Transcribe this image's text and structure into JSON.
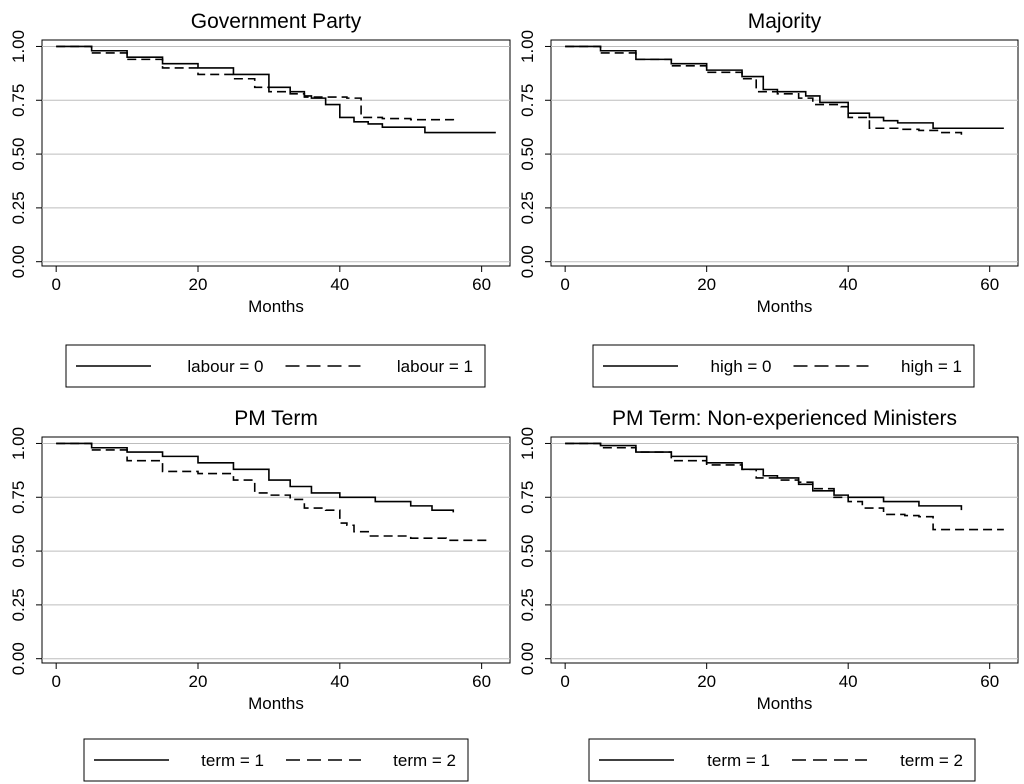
{
  "chart_data": [
    {
      "type": "line",
      "title": "Government Party",
      "xlabel": "Months",
      "ylabel": "",
      "xlim": [
        -2,
        64
      ],
      "ylim": [
        -0.02,
        1.03
      ],
      "xticks": [
        0,
        20,
        40,
        60
      ],
      "yticks": [
        0.0,
        0.25,
        0.5,
        0.75,
        1.0
      ],
      "ytick_labels": [
        "0.00",
        "0.25",
        "0.50",
        "0.75",
        "1.00"
      ],
      "grid": "horizontal",
      "legend_position": "bottom",
      "series": [
        {
          "name": "labour = 0",
          "style": "solid",
          "x": [
            0,
            5,
            10,
            15,
            20,
            25,
            30,
            33,
            35,
            36,
            38,
            40,
            42,
            44,
            46,
            52,
            62
          ],
          "y": [
            1.0,
            0.98,
            0.95,
            0.92,
            0.9,
            0.87,
            0.81,
            0.79,
            0.77,
            0.76,
            0.73,
            0.67,
            0.65,
            0.64,
            0.625,
            0.6,
            0.6
          ]
        },
        {
          "name": "labour = 1",
          "style": "dashed",
          "x": [
            0,
            5,
            10,
            15,
            20,
            25,
            28,
            30,
            33,
            35,
            38,
            41,
            43,
            46,
            50,
            56
          ],
          "y": [
            1.0,
            0.97,
            0.94,
            0.9,
            0.87,
            0.85,
            0.81,
            0.79,
            0.78,
            0.765,
            0.765,
            0.76,
            0.67,
            0.665,
            0.66,
            0.64
          ]
        }
      ]
    },
    {
      "type": "line",
      "title": "Majority",
      "xlabel": "Months",
      "ylabel": "",
      "xlim": [
        -2,
        64
      ],
      "ylim": [
        -0.02,
        1.03
      ],
      "xticks": [
        0,
        20,
        40,
        60
      ],
      "yticks": [
        0.0,
        0.25,
        0.5,
        0.75,
        1.0
      ],
      "ytick_labels": [
        "0.00",
        "0.25",
        "0.50",
        "0.75",
        "1.00"
      ],
      "grid": "horizontal",
      "legend_position": "bottom",
      "series": [
        {
          "name": "high = 0",
          "style": "solid",
          "x": [
            0,
            5,
            10,
            15,
            20,
            25,
            28,
            30,
            34,
            36,
            40,
            43,
            45,
            47,
            52,
            62
          ],
          "y": [
            1.0,
            0.98,
            0.94,
            0.92,
            0.89,
            0.86,
            0.8,
            0.79,
            0.77,
            0.74,
            0.69,
            0.67,
            0.655,
            0.645,
            0.62,
            0.62
          ]
        },
        {
          "name": "high = 1",
          "style": "dashed",
          "x": [
            0,
            5,
            10,
            15,
            20,
            25,
            27,
            30,
            33,
            35,
            39,
            40,
            43,
            47,
            50,
            53,
            56
          ],
          "y": [
            1.0,
            0.97,
            0.94,
            0.91,
            0.88,
            0.85,
            0.79,
            0.78,
            0.76,
            0.73,
            0.72,
            0.67,
            0.62,
            0.615,
            0.61,
            0.6,
            0.59
          ]
        }
      ]
    },
    {
      "type": "line",
      "title": "PM Term",
      "xlabel": "Months",
      "ylabel": "",
      "xlim": [
        -2,
        64
      ],
      "ylim": [
        -0.02,
        1.03
      ],
      "xticks": [
        0,
        20,
        40,
        60
      ],
      "yticks": [
        0.0,
        0.25,
        0.5,
        0.75,
        1.0
      ],
      "ytick_labels": [
        "0.00",
        "0.25",
        "0.50",
        "0.75",
        "1.00"
      ],
      "grid": "horizontal",
      "legend_position": "bottom",
      "series": [
        {
          "name": "term = 1",
          "style": "solid",
          "x": [
            0,
            5,
            10,
            15,
            20,
            25,
            30,
            33,
            36,
            40,
            45,
            50,
            53,
            56
          ],
          "y": [
            1.0,
            0.98,
            0.96,
            0.94,
            0.91,
            0.88,
            0.83,
            0.8,
            0.77,
            0.75,
            0.73,
            0.71,
            0.69,
            0.68
          ]
        },
        {
          "name": "term = 2",
          "style": "dashed",
          "x": [
            0,
            5,
            10,
            15,
            20,
            25,
            28,
            30,
            33,
            35,
            38,
            40,
            41,
            42,
            44,
            50,
            55,
            61
          ],
          "y": [
            1.0,
            0.97,
            0.92,
            0.87,
            0.86,
            0.83,
            0.77,
            0.76,
            0.74,
            0.7,
            0.69,
            0.63,
            0.62,
            0.59,
            0.57,
            0.56,
            0.55,
            0.55
          ]
        }
      ]
    },
    {
      "type": "line",
      "title": "PM Term: Non-experienced Ministers",
      "xlabel": "Months",
      "ylabel": "",
      "xlim": [
        -2,
        64
      ],
      "ylim": [
        -0.02,
        1.03
      ],
      "xticks": [
        0,
        20,
        40,
        60
      ],
      "yticks": [
        0.0,
        0.25,
        0.5,
        0.75,
        1.0
      ],
      "ytick_labels": [
        "0.00",
        "0.25",
        "0.50",
        "0.75",
        "1.00"
      ],
      "grid": "horizontal",
      "legend_position": "bottom",
      "series": [
        {
          "name": "term = 1",
          "style": "solid",
          "x": [
            0,
            5,
            10,
            15,
            20,
            25,
            28,
            30,
            33,
            35,
            38,
            40,
            45,
            50,
            53,
            56
          ],
          "y": [
            1.0,
            0.99,
            0.96,
            0.94,
            0.91,
            0.88,
            0.85,
            0.84,
            0.81,
            0.78,
            0.76,
            0.75,
            0.73,
            0.71,
            0.71,
            0.69
          ]
        },
        {
          "name": "term = 2",
          "style": "dashed",
          "x": [
            0,
            5,
            10,
            15,
            20,
            25,
            27,
            30,
            33,
            35,
            38,
            40,
            42,
            45,
            48,
            50,
            52,
            62
          ],
          "y": [
            1.0,
            0.98,
            0.96,
            0.92,
            0.9,
            0.88,
            0.84,
            0.83,
            0.82,
            0.79,
            0.75,
            0.73,
            0.7,
            0.67,
            0.665,
            0.66,
            0.6,
            0.6
          ]
        }
      ]
    }
  ]
}
